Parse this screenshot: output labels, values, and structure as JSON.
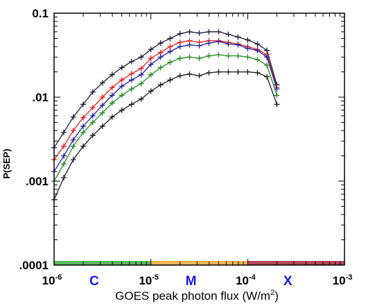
{
  "chart_data": {
    "type": "line",
    "xlabel": "GOES peak photon flux (W/m",
    "xlabel_sup": "2",
    "xlabel_close": ")",
    "ylabel": "P(SEP)",
    "xscale": "log",
    "yscale": "log",
    "xlim": [
      1e-06,
      0.001
    ],
    "ylim": [
      0.0001,
      0.1
    ],
    "x_tick_labels": [
      {
        "base": "10",
        "exp": "-6"
      },
      {
        "base": "10",
        "exp": "-5"
      },
      {
        "base": "10",
        "exp": "-4"
      },
      {
        "base": "10",
        "exp": "-3"
      }
    ],
    "y_tick_labels": [
      "0.1",
      ".01",
      ".001",
      ".0001"
    ],
    "flare_classes": [
      {
        "label": "C",
        "x_from": 1e-06,
        "x_to": 1e-05,
        "color": "#5cb85c"
      },
      {
        "label": "M",
        "x_from": 1e-05,
        "x_to": 0.0001,
        "color": "#f0b450"
      },
      {
        "label": "X",
        "x_from": 0.0001,
        "x_to": 0.001,
        "color": "#b5455a"
      }
    ],
    "class_label_color": "#1a1adb",
    "x": [
      1e-06,
      1.26e-06,
      1.58e-06,
      2e-06,
      2.51e-06,
      3.16e-06,
      3.98e-06,
      5.01e-06,
      6.31e-06,
      7.94e-06,
      1e-05,
      1.26e-05,
      1.58e-05,
      2e-05,
      2.51e-05,
      3.16e-05,
      3.98e-05,
      5.01e-05,
      6.31e-05,
      7.94e-05,
      0.0001,
      0.000126,
      0.000158,
      0.0002
    ],
    "series": [
      {
        "color": "#1a1a3a",
        "values": [
          0.0025,
          0.0038,
          0.0058,
          0.0082,
          0.0115,
          0.0148,
          0.0185,
          0.0225,
          0.0265,
          0.03,
          0.037,
          0.044,
          0.05,
          0.057,
          0.06,
          0.058,
          0.06,
          0.06,
          0.056,
          0.052,
          0.048,
          0.043,
          0.036,
          0.014
        ]
      },
      {
        "color": "#e02020",
        "values": [
          0.0018,
          0.0026,
          0.004,
          0.0057,
          0.0075,
          0.01,
          0.013,
          0.016,
          0.019,
          0.022,
          0.029,
          0.034,
          0.04,
          0.045,
          0.047,
          0.045,
          0.047,
          0.047,
          0.045,
          0.043,
          0.04,
          0.037,
          0.032,
          0.013
        ]
      },
      {
        "color": "#2020a0",
        "values": [
          0.0013,
          0.002,
          0.0031,
          0.0045,
          0.006,
          0.008,
          0.0105,
          0.0135,
          0.016,
          0.0185,
          0.0245,
          0.03,
          0.035,
          0.04,
          0.042,
          0.041,
          0.044,
          0.046,
          0.043,
          0.042,
          0.038,
          0.036,
          0.03,
          0.0125
        ]
      },
      {
        "color": "#228b22",
        "values": [
          0.001,
          0.0016,
          0.0026,
          0.0038,
          0.005,
          0.0065,
          0.0085,
          0.0105,
          0.0125,
          0.0145,
          0.0185,
          0.0225,
          0.026,
          0.029,
          0.03,
          0.029,
          0.031,
          0.032,
          0.031,
          0.031,
          0.03,
          0.028,
          0.024,
          0.0105
        ]
      },
      {
        "color": "#1c1c1c",
        "values": [
          0.0006,
          0.0011,
          0.0018,
          0.0026,
          0.0035,
          0.0045,
          0.0058,
          0.007,
          0.0082,
          0.0095,
          0.0118,
          0.014,
          0.016,
          0.018,
          0.0188,
          0.018,
          0.0195,
          0.02,
          0.02,
          0.02,
          0.02,
          0.0195,
          0.0175,
          0.0082
        ]
      }
    ]
  }
}
